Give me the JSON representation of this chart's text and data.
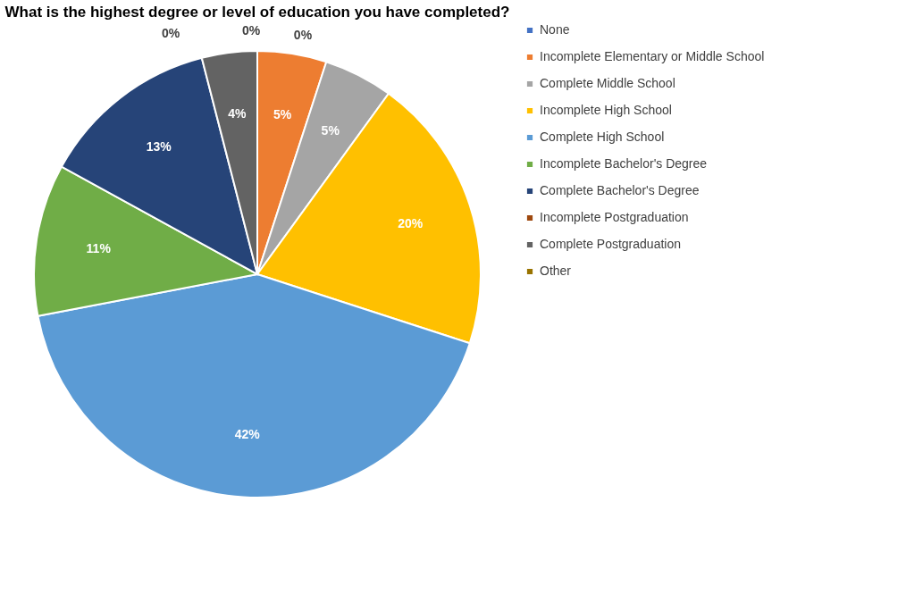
{
  "chart_data": {
    "type": "pie",
    "title": "What is the highest degree or level of education you have completed?",
    "categories": [
      "None",
      "Incomplete Elementary or Middle School",
      "Complete Middle School",
      "Incomplete High School",
      "Complete High School",
      "Incomplete Bachelor's Degree",
      "Complete Bachelor's Degree",
      "Incomplete Postgraduation",
      "Complete Postgraduation",
      "Other"
    ],
    "values": [
      0,
      5,
      5,
      20,
      42,
      11,
      13,
      0,
      4,
      0
    ],
    "value_labels": [
      "0%",
      "5%",
      "5%",
      "20%",
      "42%",
      "11%",
      "13%",
      "0%",
      "4%",
      "0%"
    ],
    "colors": [
      "#4472c4",
      "#ed7d31",
      "#a5a5a5",
      "#ffc000",
      "#5b9bd5",
      "#70ad47",
      "#264478",
      "#9e480e",
      "#636363",
      "#997300"
    ],
    "legend": "right"
  }
}
